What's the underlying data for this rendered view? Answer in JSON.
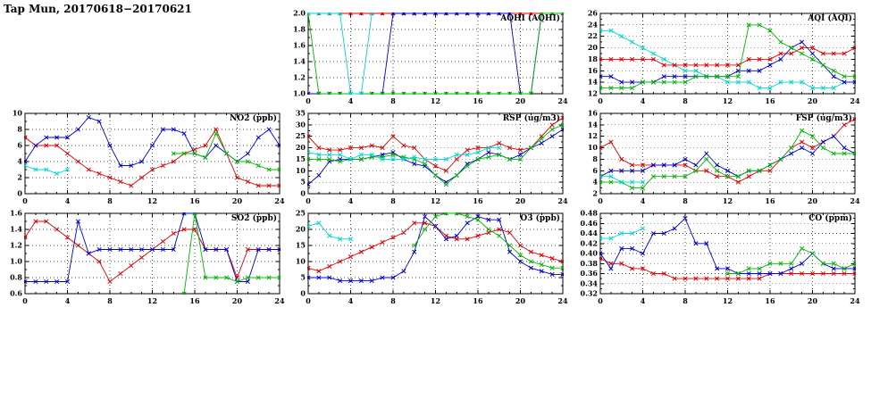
{
  "page": {
    "title": "Tap Mun, 20170618−20170621"
  },
  "colors": {
    "red": "#dd0000",
    "blue": "#0000cc",
    "green": "#00b400",
    "cyan": "#00d4d4"
  },
  "chart_data": [
    {
      "id": "aqhi",
      "type": "line",
      "title": "AQHI (AQHI)",
      "xlabel": "",
      "ylabel": "",
      "marker": "x",
      "grid": true,
      "legend": "none",
      "xlim": [
        0,
        24
      ],
      "xstep": 4,
      "ylim": [
        1.0,
        2.0
      ],
      "ystep": 0.2,
      "ydec": 1,
      "series": [
        {
          "name": "red",
          "color": "red",
          "x0": 0,
          "y": [
            2,
            2,
            2,
            2,
            2,
            2,
            2,
            2,
            2,
            2,
            2,
            2,
            2,
            2,
            2,
            2,
            2,
            2,
            2,
            2,
            2,
            2,
            2,
            2,
            2
          ]
        },
        {
          "name": "blue",
          "color": "blue",
          "x0": 0,
          "y": [
            1,
            1,
            1,
            1,
            1,
            1,
            1,
            1,
            2,
            2,
            2,
            2,
            2,
            2,
            2,
            2,
            2,
            2,
            2,
            2,
            1,
            1,
            2,
            2,
            2
          ]
        },
        {
          "name": "green",
          "color": "green",
          "x0": 0,
          "y": [
            2,
            1,
            1,
            1,
            1,
            1,
            1,
            1,
            1,
            1,
            1,
            1,
            1,
            1,
            1,
            1,
            1,
            1,
            1,
            1,
            1,
            1,
            2,
            2,
            2
          ]
        },
        {
          "name": "cyan",
          "color": "cyan",
          "x0": 0,
          "y": [
            2,
            2,
            2,
            2,
            1,
            1,
            2
          ]
        }
      ]
    },
    {
      "id": "aqi",
      "type": "line",
      "title": "AQI (AQI)",
      "xlabel": "",
      "ylabel": "",
      "marker": "x",
      "grid": true,
      "legend": "none",
      "xlim": [
        0,
        24
      ],
      "xstep": 4,
      "ylim": [
        12,
        26
      ],
      "ystep": 2,
      "ydec": 0,
      "series": [
        {
          "name": "cyan",
          "color": "cyan",
          "x0": 0,
          "y": [
            23,
            23,
            22,
            21,
            20,
            19,
            18,
            17,
            16,
            16,
            15,
            15,
            14,
            14,
            14,
            13,
            13,
            14,
            14,
            14,
            13,
            13,
            13,
            14,
            14
          ]
        },
        {
          "name": "red",
          "color": "red",
          "x0": 0,
          "y": [
            18,
            18,
            18,
            18,
            18,
            18,
            17,
            17,
            17,
            17,
            17,
            17,
            17,
            17,
            18,
            18,
            18,
            19,
            19,
            20,
            20,
            19,
            19,
            19,
            20
          ]
        },
        {
          "name": "blue",
          "color": "blue",
          "x0": 0,
          "y": [
            15,
            15,
            14,
            14,
            14,
            14,
            15,
            15,
            15,
            15,
            15,
            15,
            15,
            16,
            16,
            16,
            17,
            18,
            20,
            21,
            19,
            17,
            15,
            14,
            14
          ]
        },
        {
          "name": "green",
          "color": "green",
          "x0": 0,
          "y": [
            13,
            13,
            13,
            13,
            14,
            14,
            14,
            14,
            14,
            15,
            15,
            15,
            15,
            15,
            24,
            24,
            23,
            21,
            20,
            19,
            18,
            17,
            16,
            15,
            15
          ]
        }
      ]
    },
    {
      "id": "no2",
      "type": "line",
      "title": "NO2 (ppb)",
      "xlabel": "",
      "ylabel": "",
      "marker": "x",
      "grid": true,
      "legend": "none",
      "xlim": [
        0,
        24
      ],
      "xstep": 4,
      "ylim": [
        0,
        10
      ],
      "ystep": 2,
      "ydec": 0,
      "series": [
        {
          "name": "red",
          "color": "red",
          "x0": 0,
          "y": [
            7,
            6,
            6,
            6,
            5,
            4,
            3,
            2.5,
            2,
            1.5,
            1,
            2,
            3,
            3.5,
            4,
            5,
            5.5,
            6,
            8,
            5,
            2,
            1.5,
            1,
            1,
            1
          ]
        },
        {
          "name": "blue",
          "color": "blue",
          "x0": 0,
          "y": [
            4,
            6,
            7,
            7,
            7,
            8,
            9.5,
            9,
            6,
            3.5,
            3.5,
            4,
            6,
            8,
            8,
            7.5,
            5,
            4.5,
            6,
            5,
            4,
            5,
            7,
            8,
            6
          ]
        },
        {
          "name": "green",
          "color": "green",
          "x0": 14,
          "y": [
            5,
            5,
            5,
            4.5,
            7.5,
            5,
            4,
            4,
            3.5,
            3,
            3
          ]
        },
        {
          "name": "cyan",
          "color": "cyan",
          "x0": 0,
          "y": [
            3.5,
            3,
            3,
            2.5,
            3
          ]
        }
      ]
    },
    {
      "id": "rsp",
      "type": "line",
      "title": "RSP (ug/m3)",
      "xlabel": "",
      "ylabel": "",
      "marker": "x",
      "grid": true,
      "legend": "none",
      "xlim": [
        0,
        24
      ],
      "xstep": 4,
      "ylim": [
        0,
        35
      ],
      "ystep": 5,
      "ydec": 0,
      "series": [
        {
          "name": "red",
          "color": "red",
          "x0": 0,
          "y": [
            25,
            20,
            19,
            19,
            20,
            20,
            21,
            20,
            25,
            21,
            20,
            15,
            12,
            10,
            15,
            19,
            20,
            20,
            22,
            20,
            19,
            20,
            25,
            30,
            33
          ]
        },
        {
          "name": "blue",
          "color": "blue",
          "x0": 0,
          "y": [
            4,
            8,
            14,
            15,
            15,
            15,
            16,
            17,
            18,
            15,
            13,
            12,
            8,
            5,
            8,
            13,
            15,
            18,
            17,
            15,
            17,
            20,
            22,
            25,
            28
          ]
        },
        {
          "name": "green",
          "color": "green",
          "x0": 0,
          "y": [
            15,
            15,
            15,
            14,
            15,
            15,
            16,
            16,
            17,
            16,
            15,
            13,
            8,
            4,
            8,
            12,
            15,
            16,
            17,
            15,
            15,
            20,
            24,
            28,
            30
          ]
        },
        {
          "name": "cyan",
          "color": "cyan",
          "x0": 0,
          "y": [
            18,
            17,
            17,
            17,
            15,
            17,
            17,
            15,
            15,
            15,
            16,
            15,
            15,
            15,
            17,
            17,
            18,
            20,
            20
          ]
        }
      ]
    },
    {
      "id": "fsp",
      "type": "line",
      "title": "FSP (ug/m3)",
      "xlabel": "",
      "ylabel": "",
      "marker": "x",
      "grid": true,
      "legend": "none",
      "xlim": [
        0,
        24
      ],
      "xstep": 4,
      "ylim": [
        2,
        16
      ],
      "ystep": 2,
      "ydec": 0,
      "series": [
        {
          "name": "red",
          "color": "red",
          "x0": 0,
          "y": [
            10,
            11,
            8,
            7,
            7,
            7,
            7,
            7,
            7,
            6,
            6,
            5,
            5,
            4,
            5,
            6,
            6,
            8,
            10,
            11,
            10,
            11,
            12,
            14,
            15
          ]
        },
        {
          "name": "blue",
          "color": "blue",
          "x0": 0,
          "y": [
            5,
            6,
            6,
            6,
            6,
            7,
            7,
            7,
            8,
            7,
            9,
            7,
            6,
            5,
            6,
            6,
            7,
            8,
            9,
            10,
            9,
            11,
            12,
            10,
            9
          ]
        },
        {
          "name": "green",
          "color": "green",
          "x0": 0,
          "y": [
            4,
            4,
            4,
            3,
            3,
            5,
            5,
            5,
            5,
            6,
            8,
            6,
            5,
            5,
            6,
            6,
            7,
            8,
            10,
            13,
            12,
            10,
            9,
            9,
            9
          ]
        },
        {
          "name": "cyan",
          "color": "cyan",
          "x0": 0,
          "y": [
            5,
            5,
            4,
            4,
            4
          ]
        }
      ]
    },
    {
      "id": "so2",
      "type": "line",
      "title": "SO2 (ppb)",
      "xlabel": "",
      "ylabel": "",
      "marker": "x",
      "grid": true,
      "legend": "none",
      "xlim": [
        0,
        24
      ],
      "xstep": 4,
      "ylim": [
        0.6,
        1.6
      ],
      "ystep": 0.2,
      "ydec": 1,
      "series": [
        {
          "name": "red",
          "color": "red",
          "x0": 0,
          "y": [
            1.3,
            1.5,
            1.5,
            1.4,
            1.3,
            1.2,
            1.1,
            1.0,
            0.75,
            0.85,
            0.95,
            1.05,
            1.15,
            1.25,
            1.35,
            1.4,
            1.4,
            1.15,
            1.15,
            1.15,
            0.8,
            1.15,
            1.15,
            1.15,
            1.15
          ]
        },
        {
          "name": "blue",
          "color": "blue",
          "x0": 0,
          "y": [
            0.75,
            0.75,
            0.75,
            0.75,
            0.75,
            1.5,
            1.1,
            1.15,
            1.15,
            1.15,
            1.15,
            1.15,
            1.15,
            1.15,
            1.15,
            1.6,
            1.6,
            1.15,
            1.15,
            1.15,
            0.75,
            0.75,
            1.15,
            1.15,
            1.15
          ]
        },
        {
          "name": "green",
          "color": "green",
          "x0": 15,
          "y": [
            0.6,
            1.6,
            0.8,
            0.8,
            0.8,
            0.75,
            0.8,
            0.8,
            0.8,
            0.8
          ]
        }
      ]
    },
    {
      "id": "o3",
      "type": "line",
      "title": "O3 (ppb)",
      "xlabel": "",
      "ylabel": "",
      "marker": "x",
      "grid": true,
      "legend": "none",
      "xlim": [
        0,
        24
      ],
      "xstep": 4,
      "ylim": [
        0,
        25
      ],
      "ystep": 5,
      "ydec": 0,
      "series": [
        {
          "name": "red",
          "color": "red",
          "x0": 0,
          "y": [
            8,
            7,
            8.5,
            10,
            11.5,
            13,
            14.5,
            16,
            17.5,
            19,
            22,
            22,
            21,
            18,
            17,
            17,
            18,
            19,
            20,
            19,
            15,
            13,
            12,
            11,
            10
          ]
        },
        {
          "name": "blue",
          "color": "blue",
          "x0": 0,
          "y": [
            5,
            5,
            5,
            4,
            4,
            4,
            4,
            5,
            5,
            7,
            13,
            24,
            21,
            17,
            18,
            22,
            24,
            23,
            23,
            13,
            10,
            8,
            7,
            6,
            6
          ]
        },
        {
          "name": "green",
          "color": "green",
          "x0": 10,
          "y": [
            15,
            20,
            24,
            25,
            25,
            24,
            23,
            20,
            18,
            15,
            12,
            10,
            9,
            8,
            8
          ]
        },
        {
          "name": "cyan",
          "color": "cyan",
          "x0": 0,
          "y": [
            21,
            22,
            18,
            17,
            17
          ]
        }
      ]
    },
    {
      "id": "co",
      "type": "line",
      "title": "CO (ppm)",
      "xlabel": "",
      "ylabel": "",
      "marker": "x",
      "grid": true,
      "legend": "none",
      "xlim": [
        0,
        24
      ],
      "xstep": 4,
      "ylim": [
        0.32,
        0.48
      ],
      "ystep": 0.02,
      "ydec": 2,
      "series": [
        {
          "name": "red",
          "color": "red",
          "x0": 0,
          "y": [
            0.39,
            0.38,
            0.38,
            0.37,
            0.37,
            0.36,
            0.36,
            0.35,
            0.35,
            0.35,
            0.35,
            0.35,
            0.35,
            0.35,
            0.35,
            0.35,
            0.36,
            0.36,
            0.36,
            0.36,
            0.36,
            0.36,
            0.36,
            0.36,
            0.36
          ]
        },
        {
          "name": "blue",
          "color": "blue",
          "x0": 0,
          "y": [
            0.4,
            0.37,
            0.41,
            0.41,
            0.4,
            0.44,
            0.44,
            0.45,
            0.47,
            0.42,
            0.42,
            0.37,
            0.37,
            0.36,
            0.36,
            0.36,
            0.36,
            0.36,
            0.37,
            0.38,
            0.4,
            0.38,
            0.37,
            0.37,
            0.37
          ]
        },
        {
          "name": "green",
          "color": "green",
          "x0": 12,
          "y": [
            0.36,
            0.36,
            0.37,
            0.37,
            0.38,
            0.38,
            0.38,
            0.41,
            0.4,
            0.38,
            0.38,
            0.37,
            0.38
          ]
        },
        {
          "name": "cyan",
          "color": "cyan",
          "x0": 0,
          "y": [
            0.43,
            0.43,
            0.44,
            0.44,
            0.45
          ]
        }
      ]
    }
  ]
}
